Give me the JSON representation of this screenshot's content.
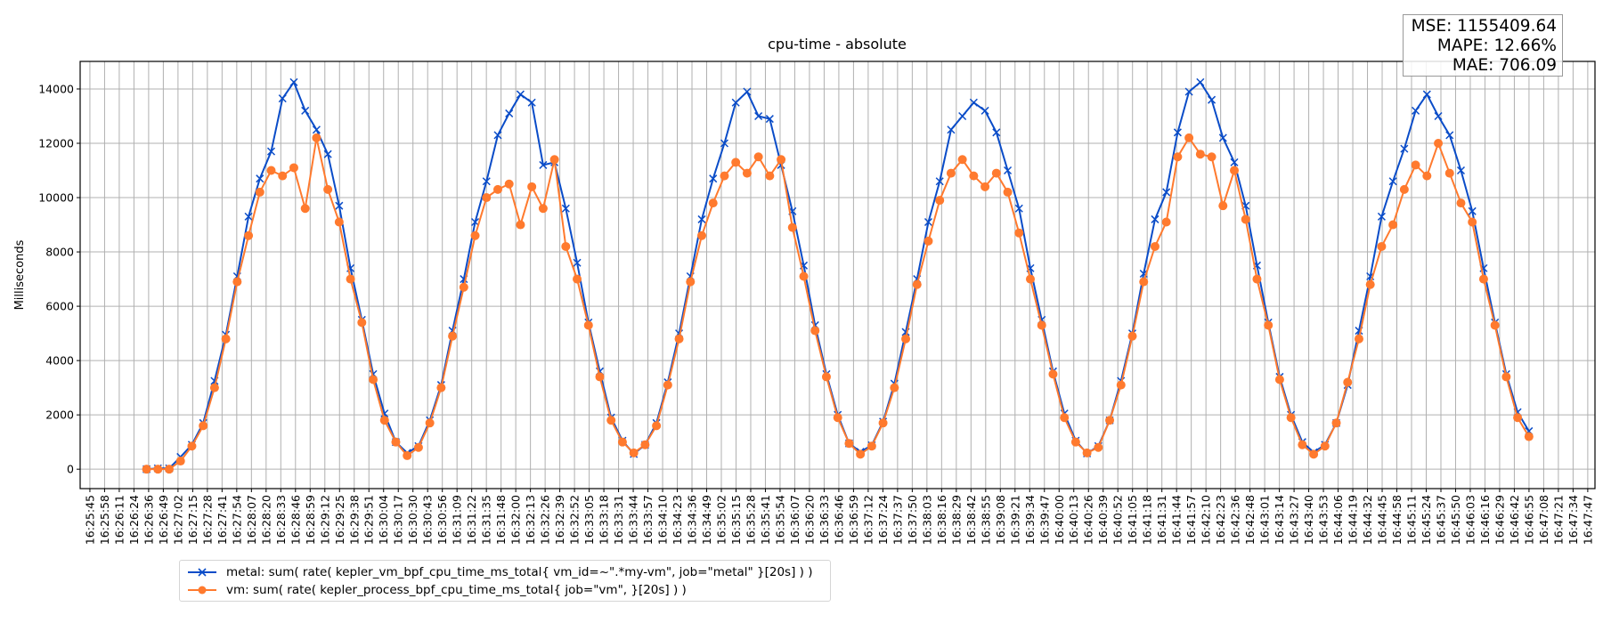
{
  "chart_data": {
    "type": "line",
    "title": "cpu-time - absolute",
    "xlabel": "",
    "ylabel": "Milliseconds",
    "ylim": [
      -715,
      15015
    ],
    "yticks": [
      0,
      2000,
      4000,
      6000,
      8000,
      10000,
      12000,
      14000
    ],
    "grid": true,
    "x_origin_time": "16:25:45",
    "xlim_seconds": [
      -8.6,
      1328.3
    ],
    "tick_interval_seconds": 12.96,
    "xtick_labels": [
      "16:25:45",
      "16:25:58",
      "16:26:11",
      "16:26:24",
      "16:26:36",
      "16:26:49",
      "16:27:02",
      "16:27:15",
      "16:27:28",
      "16:27:41",
      "16:27:54",
      "16:28:07",
      "16:28:20",
      "16:28:33",
      "16:28:46",
      "16:28:59",
      "16:29:12",
      "16:29:25",
      "16:29:38",
      "16:29:51",
      "16:30:04",
      "16:30:17",
      "16:30:30",
      "16:30:43",
      "16:30:56",
      "16:31:09",
      "16:31:22",
      "16:31:35",
      "16:31:48",
      "16:32:00",
      "16:32:13",
      "16:32:26",
      "16:32:39",
      "16:32:52",
      "16:33:05",
      "16:33:18",
      "16:33:31",
      "16:33:44",
      "16:33:57",
      "16:34:10",
      "16:34:23",
      "16:34:36",
      "16:34:49",
      "16:35:02",
      "16:35:15",
      "16:35:28",
      "16:35:41",
      "16:35:54",
      "16:36:07",
      "16:36:20",
      "16:36:33",
      "16:36:46",
      "16:36:59",
      "16:37:12",
      "16:37:24",
      "16:37:37",
      "16:37:50",
      "16:38:03",
      "16:38:16",
      "16:38:29",
      "16:38:42",
      "16:38:55",
      "16:39:08",
      "16:39:21",
      "16:39:34",
      "16:39:47",
      "16:40:00",
      "16:40:13",
      "16:40:26",
      "16:40:39",
      "16:40:52",
      "16:41:05",
      "16:41:18",
      "16:41:31",
      "16:41:44",
      "16:41:57",
      "16:42:10",
      "16:42:23",
      "16:42:36",
      "16:42:48",
      "16:43:01",
      "16:43:14",
      "16:43:27",
      "16:43:40",
      "16:43:53",
      "16:44:06",
      "16:44:19",
      "16:44:32",
      "16:44:45",
      "16:44:58",
      "16:45:11",
      "16:45:24",
      "16:45:37",
      "16:45:50",
      "16:46:03",
      "16:46:16",
      "16:46:29",
      "16:46:42",
      "16:46:55",
      "16:47:08",
      "16:47:21",
      "16:47:34",
      "16:47:47"
    ],
    "x_start_seconds": 50,
    "x_step_seconds": 10,
    "legend_position": "below-left",
    "series": [
      {
        "name": "metal: sum( rate( kepler_vm_bpf_cpu_time_ms_total{ vm_id=~\".*my-vm\", job=\"metal\" }[20s] ) )",
        "color": "#0a4cc8",
        "marker": "x",
        "values": [
          0,
          30,
          30,
          450,
          900,
          1700,
          3250,
          4950,
          7100,
          9300,
          10700,
          11700,
          13650,
          14250,
          13200,
          12500,
          11600,
          9700,
          7400,
          5500,
          3500,
          2050,
          1000,
          600,
          850,
          1800,
          3100,
          5100,
          7000,
          9100,
          10600,
          12300,
          13100,
          13800,
          13500,
          11200,
          11300,
          9600,
          7600,
          5400,
          3600,
          1900,
          1050,
          560,
          900,
          1700,
          3200,
          5000,
          7100,
          9200,
          10700,
          12000,
          13500,
          13900,
          13000,
          12900,
          11200,
          9500,
          7500,
          5300,
          3500,
          2000,
          950,
          640,
          880,
          1750,
          3150,
          5050,
          7000,
          9100,
          10600,
          12500,
          13000,
          13500,
          13200,
          12400,
          11000,
          9600,
          7400,
          5500,
          3600,
          2050,
          1050,
          580,
          850,
          1800,
          3250,
          5000,
          7200,
          9200,
          10200,
          12400,
          13900,
          14250,
          13600,
          12200,
          11300,
          9700,
          7500,
          5400,
          3400,
          2000,
          1000,
          620,
          900,
          1700,
          3100,
          5100,
          7100,
          9300,
          10600,
          11800,
          13200,
          13800,
          13000,
          12300,
          11000,
          9500,
          7400,
          5400,
          3500,
          2100,
          1400
        ]
      },
      {
        "name": "vm: sum( rate( kepler_process_bpf_cpu_time_ms_total{ job=\"vm\", }[20s] ) )",
        "color": "#ff7a2e",
        "marker": "o",
        "values": [
          0,
          0,
          0,
          300,
          850,
          1600,
          3000,
          4800,
          6900,
          8600,
          10200,
          11000,
          10800,
          11100,
          9600,
          12200,
          10300,
          9100,
          7000,
          5400,
          3300,
          1800,
          1000,
          500,
          800,
          1700,
          3000,
          4900,
          6700,
          8600,
          10000,
          10300,
          10500,
          9000,
          10400,
          9600,
          11400,
          8200,
          7000,
          5300,
          3400,
          1800,
          1000,
          600,
          900,
          1600,
          3100,
          4800,
          6900,
          8600,
          9800,
          10800,
          11300,
          10900,
          11500,
          10800,
          11400,
          8900,
          7100,
          5100,
          3400,
          1900,
          950,
          550,
          850,
          1700,
          3000,
          4800,
          6800,
          8400,
          9900,
          10900,
          11400,
          10800,
          10400,
          10900,
          10200,
          8700,
          7000,
          5300,
          3500,
          1900,
          1000,
          600,
          800,
          1800,
          3100,
          4900,
          6900,
          8200,
          9100,
          11500,
          12200,
          11600,
          11500,
          9700,
          11000,
          9200,
          7000,
          5300,
          3300,
          1900,
          900,
          550,
          850,
          1700,
          3200,
          4800,
          6800,
          8200,
          9000,
          10300,
          11200,
          10800,
          12000,
          10900,
          9800,
          9100,
          7000,
          5300,
          3400,
          1900,
          1200
        ]
      }
    ],
    "stats": {
      "mse": "MSE: 1155409.64",
      "mape": "MAPE: 12.66%",
      "mae": "MAE: 706.09"
    }
  }
}
